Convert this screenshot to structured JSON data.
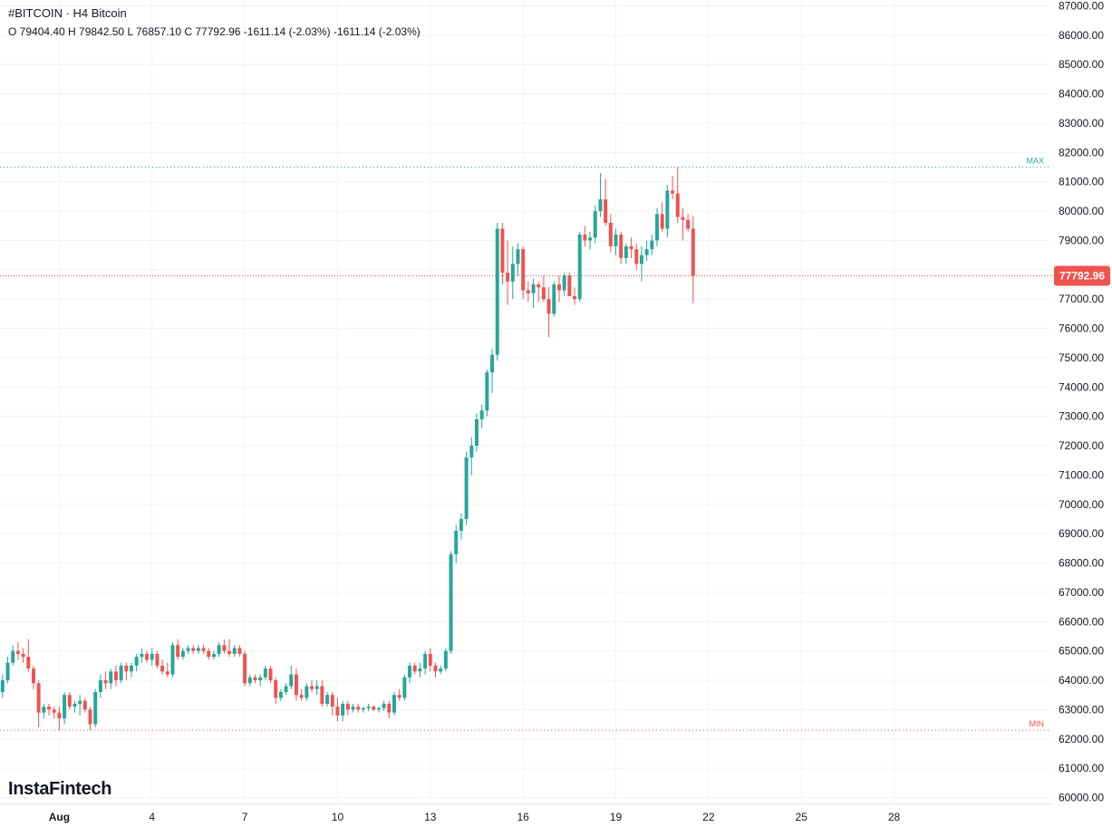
{
  "header": {
    "title": "#BITCOIN · H4 Bitcoin",
    "ohlc": "O 79404.40 H 79842.50 L 76857.10 C 77792.96 -1611.14 (-2.03%) -1611.14 (-2.03%)"
  },
  "logo": "InstaFintech",
  "colors": {
    "up": "#26a69a",
    "down": "#ef5350",
    "grid": "#f0f3fa",
    "current_price_line": "#ef5350",
    "max_line": "#26a69a",
    "min_line": "#ef5350"
  },
  "chart_data": {
    "type": "candlestick",
    "symbol": "#BITCOIN",
    "timeframe": "H4",
    "ylim": [
      59800,
      87200
    ],
    "y_ticks": [
      60000,
      61000,
      62000,
      63000,
      64000,
      65000,
      66000,
      67000,
      68000,
      69000,
      70000,
      71000,
      72000,
      73000,
      74000,
      75000,
      76000,
      77000,
      78000,
      79000,
      80000,
      81000,
      82000,
      83000,
      84000,
      85000,
      86000,
      87000
    ],
    "x_ticks": [
      {
        "label": "Aug",
        "bar": 11
      },
      {
        "label": "4",
        "bar": 29
      },
      {
        "label": "7",
        "bar": 47
      },
      {
        "label": "10",
        "bar": 65
      },
      {
        "label": "13",
        "bar": 83
      },
      {
        "label": "16",
        "bar": 101
      },
      {
        "label": "19",
        "bar": 119
      },
      {
        "label": "22",
        "bar": 137
      },
      {
        "label": "25",
        "bar": 155
      },
      {
        "label": "28",
        "bar": 173
      }
    ],
    "bar_count_visible": 204,
    "current_price": 77792.96,
    "current_price_label": "77792.96",
    "max_level": 81500,
    "max_label": "MAX",
    "min_level": 62300,
    "min_label": "MIN",
    "candles": [
      [
        63600,
        64200,
        63400,
        64000
      ],
      [
        64000,
        64800,
        63900,
        64600
      ],
      [
        64600,
        65200,
        64500,
        65000
      ],
      [
        65000,
        65300,
        64700,
        64900
      ],
      [
        64900,
        65100,
        64600,
        64800
      ],
      [
        64800,
        65400,
        64300,
        64400
      ],
      [
        64400,
        64500,
        63700,
        63900
      ],
      [
        63900,
        64000,
        62400,
        62900
      ],
      [
        62900,
        63200,
        62700,
        63100
      ],
      [
        63100,
        63200,
        62800,
        63000
      ],
      [
        63000,
        63100,
        62700,
        62900
      ],
      [
        62900,
        63100,
        62300,
        62700
      ],
      [
        62700,
        63600,
        62500,
        63500
      ],
      [
        63500,
        63600,
        63000,
        63100
      ],
      [
        63100,
        63300,
        62900,
        63200
      ],
      [
        63200,
        63500,
        62800,
        63300
      ],
      [
        63300,
        63400,
        62900,
        63000
      ],
      [
        63000,
        63100,
        62300,
        62500
      ],
      [
        62500,
        63700,
        62400,
        63600
      ],
      [
        63600,
        64200,
        63400,
        64000
      ],
      [
        64000,
        64300,
        63700,
        63900
      ],
      [
        63900,
        64400,
        63700,
        64300
      ],
      [
        64300,
        64500,
        63800,
        64000
      ],
      [
        64000,
        64600,
        63900,
        64500
      ],
      [
        64500,
        64600,
        64000,
        64300
      ],
      [
        64300,
        64600,
        64100,
        64500
      ],
      [
        64500,
        64900,
        64300,
        64800
      ],
      [
        64800,
        65100,
        64600,
        64900
      ],
      [
        64900,
        65000,
        64600,
        64700
      ],
      [
        64700,
        65100,
        64500,
        64900
      ],
      [
        64900,
        65000,
        64400,
        64500
      ],
      [
        64500,
        64700,
        64200,
        64300
      ],
      [
        64300,
        64600,
        64100,
        64200
      ],
      [
        64200,
        65300,
        64100,
        65200
      ],
      [
        65200,
        65400,
        64700,
        64800
      ],
      [
        64800,
        65100,
        64700,
        65000
      ],
      [
        65000,
        65200,
        64900,
        65100
      ],
      [
        65100,
        65200,
        64900,
        65000
      ],
      [
        65000,
        65200,
        64900,
        65100
      ],
      [
        65100,
        65200,
        64900,
        65000
      ],
      [
        65000,
        65100,
        64700,
        64800
      ],
      [
        64800,
        65000,
        64700,
        64900
      ],
      [
        64900,
        65300,
        64800,
        65200
      ],
      [
        65200,
        65400,
        64900,
        65000
      ],
      [
        65000,
        65400,
        64800,
        64900
      ],
      [
        64900,
        65200,
        64800,
        65100
      ],
      [
        65100,
        65200,
        64800,
        64900
      ],
      [
        64900,
        65000,
        63800,
        63900
      ],
      [
        63900,
        64200,
        63800,
        64100
      ],
      [
        64100,
        64200,
        63900,
        64000
      ],
      [
        64000,
        64200,
        63800,
        64100
      ],
      [
        64100,
        64500,
        64000,
        64400
      ],
      [
        64400,
        64500,
        63900,
        64000
      ],
      [
        64000,
        64100,
        63200,
        63400
      ],
      [
        63400,
        63700,
        63300,
        63600
      ],
      [
        63600,
        63900,
        63500,
        63800
      ],
      [
        63800,
        64500,
        63700,
        64200
      ],
      [
        64200,
        64400,
        63300,
        63500
      ],
      [
        63500,
        63700,
        63300,
        63400
      ],
      [
        63400,
        63900,
        63300,
        63800
      ],
      [
        63800,
        64000,
        63600,
        63700
      ],
      [
        63700,
        64000,
        63500,
        63800
      ],
      [
        63800,
        64000,
        63100,
        63200
      ],
      [
        63200,
        63600,
        63100,
        63500
      ],
      [
        63500,
        63600,
        62800,
        63100
      ],
      [
        63100,
        63400,
        62600,
        62800
      ],
      [
        62800,
        63300,
        62600,
        63200
      ],
      [
        63200,
        63300,
        62800,
        63000
      ],
      [
        63000,
        63200,
        62900,
        63100
      ],
      [
        63100,
        63200,
        62900,
        63000
      ],
      [
        63000,
        63100,
        62900,
        63050
      ],
      [
        63050,
        63200,
        62950,
        63100
      ],
      [
        63100,
        63150,
        62950,
        63000
      ],
      [
        63000,
        63100,
        62900,
        63050
      ],
      [
        63050,
        63300,
        62950,
        63200
      ],
      [
        63200,
        63300,
        62700,
        62900
      ],
      [
        62900,
        63600,
        62800,
        63500
      ],
      [
        63500,
        63700,
        63300,
        63400
      ],
      [
        63400,
        64200,
        63300,
        64100
      ],
      [
        64100,
        64600,
        63900,
        64500
      ],
      [
        64500,
        64600,
        64200,
        64300
      ],
      [
        64300,
        64600,
        64100,
        64400
      ],
      [
        64400,
        65000,
        64200,
        64900
      ],
      [
        64900,
        65100,
        64300,
        64500
      ],
      [
        64500,
        64600,
        64100,
        64300
      ],
      [
        64300,
        64500,
        64200,
        64400
      ],
      [
        64400,
        65100,
        64300,
        65000
      ],
      [
        65000,
        68400,
        64900,
        68300
      ],
      [
        68300,
        69300,
        68000,
        69100
      ],
      [
        69100,
        69700,
        68800,
        69500
      ],
      [
        69500,
        71800,
        69300,
        71600
      ],
      [
        71600,
        72300,
        71000,
        72000
      ],
      [
        72000,
        73100,
        71800,
        72900
      ],
      [
        72900,
        73400,
        72600,
        73200
      ],
      [
        73200,
        74600,
        73000,
        74500
      ],
      [
        74500,
        75300,
        73800,
        75100
      ],
      [
        75100,
        79600,
        74900,
        79400
      ],
      [
        79400,
        79600,
        77500,
        77900
      ],
      [
        77900,
        79000,
        76800,
        77600
      ],
      [
        77600,
        78800,
        77000,
        78200
      ],
      [
        78200,
        78900,
        77800,
        78700
      ],
      [
        78700,
        78800,
        77000,
        77300
      ],
      [
        77300,
        77600,
        76900,
        77200
      ],
      [
        77200,
        77700,
        76700,
        77500
      ],
      [
        77500,
        77600,
        76900,
        77400
      ],
      [
        77400,
        77800,
        76900,
        77000
      ],
      [
        77000,
        77400,
        75700,
        76500
      ],
      [
        76500,
        77600,
        76400,
        77500
      ],
      [
        77500,
        77800,
        76900,
        77300
      ],
      [
        77300,
        77900,
        77100,
        77800
      ],
      [
        77800,
        77900,
        77200,
        77100
      ],
      [
        77100,
        77400,
        76800,
        77000
      ],
      [
        77000,
        79300,
        76900,
        79200
      ],
      [
        79200,
        79500,
        78800,
        79000
      ],
      [
        79000,
        79300,
        78700,
        79100
      ],
      [
        79100,
        80200,
        78900,
        80000
      ],
      [
        80000,
        81300,
        79800,
        80400
      ],
      [
        80400,
        81100,
        79500,
        79600
      ],
      [
        79600,
        79900,
        78600,
        78800
      ],
      [
        78800,
        79400,
        78500,
        79200
      ],
      [
        79200,
        79300,
        78200,
        78400
      ],
      [
        78400,
        78900,
        78200,
        78800
      ],
      [
        78800,
        79100,
        78400,
        78700
      ],
      [
        78700,
        78900,
        78000,
        78200
      ],
      [
        78200,
        78800,
        77600,
        78500
      ],
      [
        78500,
        79000,
        78300,
        78700
      ],
      [
        78700,
        79200,
        78500,
        79000
      ],
      [
        79000,
        80100,
        78800,
        79900
      ],
      [
        79900,
        80300,
        79300,
        79400
      ],
      [
        79400,
        80900,
        79100,
        80700
      ],
      [
        80700,
        81200,
        80400,
        80600
      ],
      [
        80600,
        81500,
        79600,
        79800
      ],
      [
        79800,
        80100,
        79000,
        79700
      ],
      [
        79700,
        79900,
        79300,
        79400
      ],
      [
        79404,
        79842,
        76857,
        77793
      ]
    ]
  }
}
